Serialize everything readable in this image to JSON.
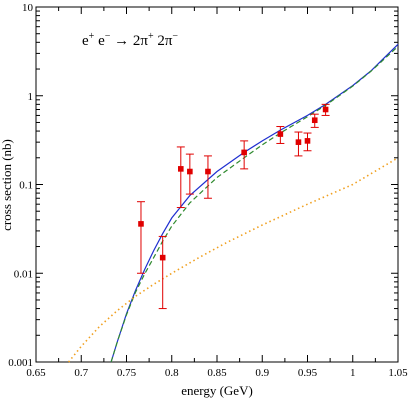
{
  "chart_data": {
    "type": "scatter",
    "annotation": {
      "prefix": "e",
      "prefix_sup": "+",
      "mid": " e",
      "mid_sup": "−",
      "arrow": " → ",
      "pi1": "2π",
      "pi1_sup": "+",
      "pi2": " 2π",
      "pi2_sup": "−"
    },
    "xlabel": "energy (GeV)",
    "ylabel": "cross section (nb)",
    "xlim": [
      0.65,
      1.05
    ],
    "ylim": [
      0.001,
      10
    ],
    "yscale": "log",
    "x_ticks": [
      0.65,
      0.7,
      0.75,
      0.8,
      0.85,
      0.9,
      0.95,
      1,
      1.05
    ],
    "x_tick_labels": [
      "0.65",
      "0.7",
      "0.75",
      "0.8",
      "0.85",
      "0.9",
      "0.95",
      "1",
      "1.05"
    ],
    "y_ticks": [
      0.001,
      0.01,
      0.1,
      1,
      10
    ],
    "y_tick_labels": [
      "0.001",
      "0.01",
      "0.1",
      "1",
      "10"
    ],
    "colors": {
      "data": "#e00000",
      "blue": "#1f2fd0",
      "green": "#2f8a2f",
      "orange": "#f0a020"
    },
    "points": [
      {
        "x": 0.766,
        "y": 0.036,
        "ylo": 0.01,
        "yhi": 0.064
      },
      {
        "x": 0.79,
        "y": 0.015,
        "ylo": 0.004,
        "yhi": 0.026
      },
      {
        "x": 0.81,
        "y": 0.15,
        "ylo": 0.055,
        "yhi": 0.265
      },
      {
        "x": 0.82,
        "y": 0.14,
        "ylo": 0.078,
        "yhi": 0.22
      },
      {
        "x": 0.84,
        "y": 0.14,
        "ylo": 0.07,
        "yhi": 0.21
      },
      {
        "x": 0.88,
        "y": 0.23,
        "ylo": 0.15,
        "yhi": 0.31
      },
      {
        "x": 0.92,
        "y": 0.37,
        "ylo": 0.29,
        "yhi": 0.45
      },
      {
        "x": 0.94,
        "y": 0.3,
        "ylo": 0.21,
        "yhi": 0.39
      },
      {
        "x": 0.95,
        "y": 0.31,
        "ylo": 0.24,
        "yhi": 0.38
      },
      {
        "x": 0.958,
        "y": 0.53,
        "ylo": 0.44,
        "yhi": 0.62
      },
      {
        "x": 0.97,
        "y": 0.7,
        "ylo": 0.6,
        "yhi": 0.8
      }
    ],
    "series": [
      {
        "style": "solid",
        "color": "blue",
        "x": [
          0.733,
          0.74,
          0.75,
          0.76,
          0.77,
          0.78,
          0.79,
          0.8,
          0.82,
          0.85,
          0.88,
          0.9,
          0.92,
          0.95,
          0.97,
          1.0,
          1.02,
          1.05
        ],
        "y": [
          0.001,
          0.0017,
          0.0035,
          0.0064,
          0.011,
          0.018,
          0.028,
          0.042,
          0.075,
          0.14,
          0.23,
          0.31,
          0.41,
          0.6,
          0.8,
          1.3,
          1.9,
          3.8
        ]
      },
      {
        "style": "dashed",
        "color": "green",
        "x": [
          0.733,
          0.74,
          0.75,
          0.76,
          0.77,
          0.78,
          0.79,
          0.8,
          0.82,
          0.85,
          0.88,
          0.9,
          0.92,
          0.95,
          0.97,
          1.0,
          1.02,
          1.05
        ],
        "y": [
          0.001,
          0.0017,
          0.0034,
          0.0061,
          0.0098,
          0.015,
          0.023,
          0.034,
          0.062,
          0.12,
          0.2,
          0.28,
          0.38,
          0.58,
          0.78,
          1.28,
          1.88,
          3.6
        ]
      },
      {
        "style": "dotted",
        "color": "orange",
        "x": [
          0.686,
          0.7,
          0.72,
          0.74,
          0.76,
          0.78,
          0.8,
          0.83,
          0.86,
          0.9,
          0.95,
          1.0,
          1.05
        ],
        "y": [
          0.001,
          0.0015,
          0.0025,
          0.0038,
          0.0055,
          0.0075,
          0.01,
          0.015,
          0.022,
          0.035,
          0.06,
          0.1,
          0.2
        ]
      }
    ]
  }
}
